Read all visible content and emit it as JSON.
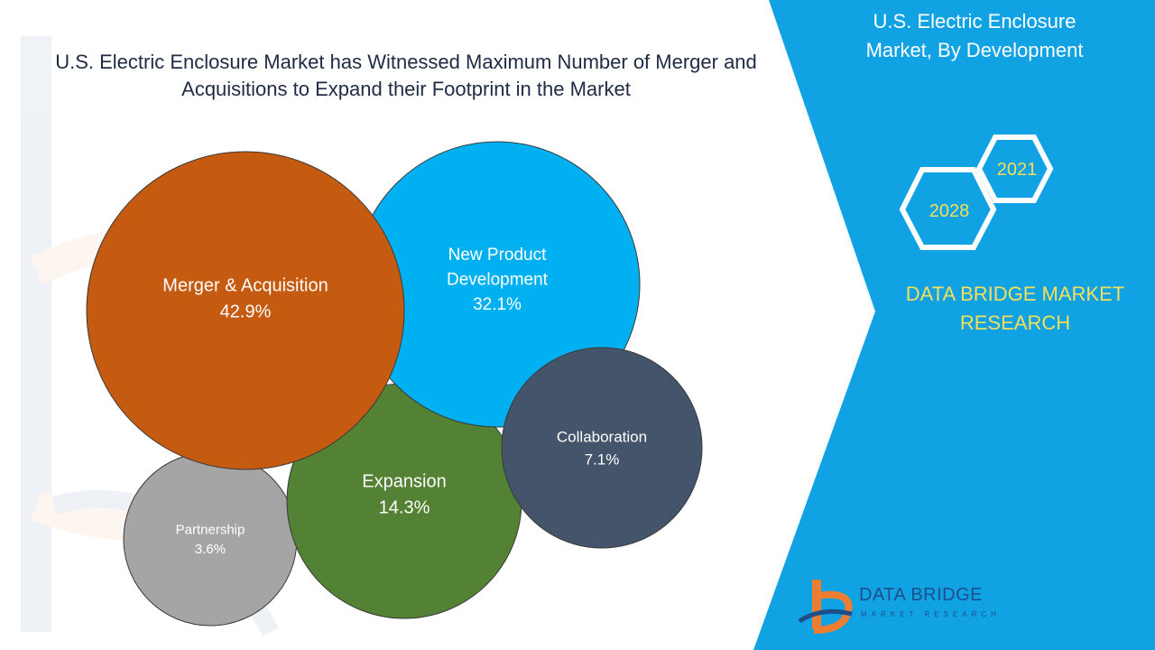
{
  "title": "U.S. Electric Enclosure Market has Witnessed Maximum Number of Merger and Acquisitions to Expand their Footprint in the Market",
  "side_panel": {
    "title": "U.S. Electric Enclosure Market, By Development",
    "year_a": "2021",
    "year_b": "2028",
    "brand": "DATA BRIDGE MARKET RESEARCH",
    "panel_color": "#10a2e3",
    "brand_color": "#f6df5b"
  },
  "logo": {
    "name": "DATA BRIDGE",
    "tagline": "MARKET RESEARCH"
  },
  "chart_data": {
    "type": "bubble",
    "unit": "%",
    "series": [
      {
        "label": "Merger & Acquisition",
        "value_label": "42.9%",
        "value": 42.9,
        "color": "#c55a11"
      },
      {
        "label": "New Product Development",
        "value_label": "32.1%",
        "value": 32.1,
        "color": "#00b0f0"
      },
      {
        "label": "Expansion",
        "value_label": "14.3%",
        "value": 14.3,
        "color": "#548235"
      },
      {
        "label": "Collaboration",
        "value_label": "7.1%",
        "value": 7.1,
        "color": "#44546a"
      },
      {
        "label": "Partnership",
        "value_label": "3.6%",
        "value": 3.6,
        "color": "#a5a5a5"
      }
    ]
  }
}
